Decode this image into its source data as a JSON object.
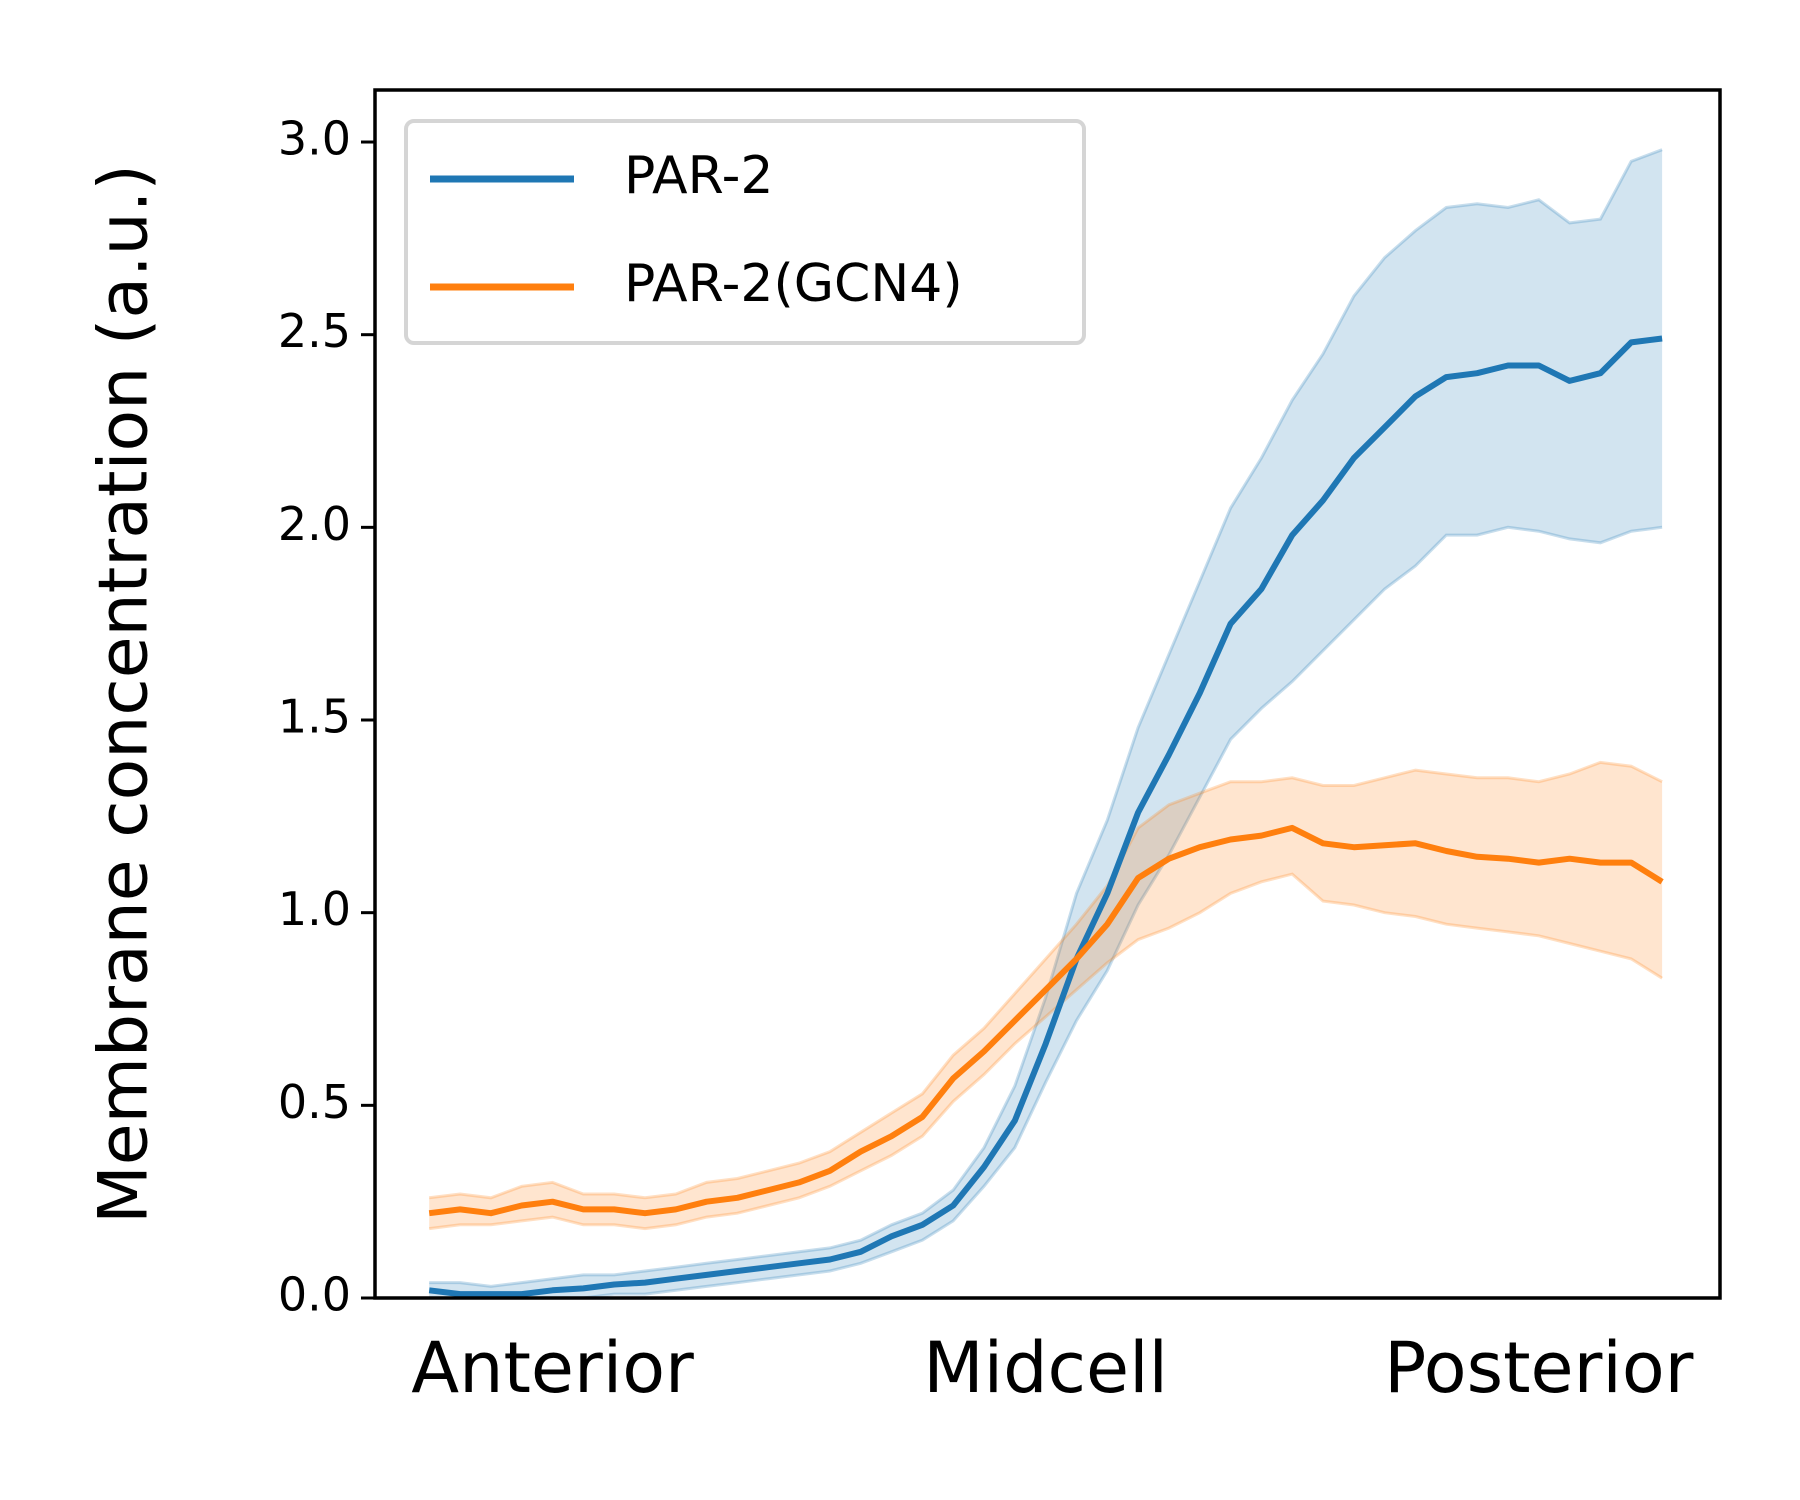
{
  "chart_data": {
    "type": "line",
    "ylabel": "Membrane concentration (a.u.)",
    "x": [
      0,
      0.025,
      0.05,
      0.075,
      0.1,
      0.125,
      0.15,
      0.175,
      0.2,
      0.225,
      0.25,
      0.275,
      0.3,
      0.325,
      0.35,
      0.375,
      0.4,
      0.425,
      0.45,
      0.475,
      0.5,
      0.525,
      0.55,
      0.575,
      0.6,
      0.625,
      0.65,
      0.675,
      0.7,
      0.725,
      0.75,
      0.775,
      0.8,
      0.825,
      0.85,
      0.875,
      0.9,
      0.925,
      0.95,
      0.975,
      1
    ],
    "xlim": [
      -0.044,
      1.047
    ],
    "xticks": [
      {
        "value": 0.1,
        "label": "Anterior"
      },
      {
        "value": 0.5,
        "label": "Midcell"
      },
      {
        "value": 0.9,
        "label": "Posterior"
      }
    ],
    "ylim": [
      0,
      3.135
    ],
    "yticks": [
      {
        "value": 0,
        "label": "0.0"
      },
      {
        "value": 0.5,
        "label": "0.5"
      },
      {
        "value": 1,
        "label": "1.0"
      },
      {
        "value": 1.5,
        "label": "1.5"
      },
      {
        "value": 2,
        "label": "2.0"
      },
      {
        "value": 2.5,
        "label": "2.5"
      },
      {
        "value": 3,
        "label": "3.0"
      }
    ],
    "legend": "upper left",
    "series": [
      {
        "name": "PAR-2",
        "color": "#1f77b4",
        "values": [
          0.02,
          0.01,
          0.01,
          0.01,
          0.02,
          0.025,
          0.035,
          0.04,
          0.05,
          0.06,
          0.07,
          0.08,
          0.09,
          0.1,
          0.12,
          0.16,
          0.19,
          0.24,
          0.34,
          0.46,
          0.66,
          0.88,
          1.05,
          1.26,
          1.41,
          1.57,
          1.75,
          1.84,
          1.98,
          2.07,
          2.18,
          2.26,
          2.34,
          2.39,
          2.4,
          2.42,
          2.42,
          2.38,
          2.4,
          2.48,
          2.49
        ],
        "lower": [
          0,
          0,
          0,
          0,
          0,
          0,
          0.01,
          0.01,
          0.02,
          0.03,
          0.04,
          0.05,
          0.06,
          0.07,
          0.09,
          0.12,
          0.15,
          0.2,
          0.29,
          0.39,
          0.56,
          0.72,
          0.85,
          1.02,
          1.15,
          1.3,
          1.45,
          1.53,
          1.6,
          1.68,
          1.76,
          1.84,
          1.9,
          1.98,
          1.98,
          2.0,
          1.99,
          1.97,
          1.96,
          1.99,
          2.0
        ],
        "upper": [
          0.04,
          0.04,
          0.03,
          0.04,
          0.05,
          0.06,
          0.06,
          0.07,
          0.08,
          0.09,
          0.1,
          0.11,
          0.12,
          0.13,
          0.15,
          0.19,
          0.22,
          0.28,
          0.39,
          0.55,
          0.78,
          1.05,
          1.24,
          1.48,
          1.67,
          1.86,
          2.05,
          2.18,
          2.33,
          2.45,
          2.6,
          2.7,
          2.77,
          2.83,
          2.84,
          2.83,
          2.85,
          2.79,
          2.8,
          2.95,
          2.98
        ]
      },
      {
        "name": "PAR-2(GCN4)",
        "color": "#ff7f0e",
        "values": [
          0.22,
          0.23,
          0.22,
          0.24,
          0.25,
          0.23,
          0.23,
          0.22,
          0.23,
          0.25,
          0.26,
          0.28,
          0.3,
          0.33,
          0.38,
          0.42,
          0.47,
          0.57,
          0.64,
          0.72,
          0.8,
          0.88,
          0.97,
          1.09,
          1.14,
          1.17,
          1.19,
          1.2,
          1.22,
          1.18,
          1.17,
          1.175,
          1.18,
          1.16,
          1.145,
          1.14,
          1.13,
          1.14,
          1.13,
          1.13,
          1.08
        ],
        "lower": [
          0.18,
          0.19,
          0.19,
          0.2,
          0.21,
          0.19,
          0.19,
          0.18,
          0.19,
          0.21,
          0.22,
          0.24,
          0.26,
          0.29,
          0.33,
          0.37,
          0.42,
          0.51,
          0.58,
          0.66,
          0.73,
          0.8,
          0.87,
          0.93,
          0.96,
          1.0,
          1.05,
          1.08,
          1.1,
          1.03,
          1.02,
          1.0,
          0.99,
          0.97,
          0.96,
          0.95,
          0.94,
          0.92,
          0.9,
          0.88,
          0.83
        ],
        "upper": [
          0.26,
          0.27,
          0.26,
          0.29,
          0.3,
          0.27,
          0.27,
          0.26,
          0.27,
          0.3,
          0.31,
          0.33,
          0.35,
          0.38,
          0.43,
          0.48,
          0.53,
          0.63,
          0.7,
          0.79,
          0.88,
          0.97,
          1.07,
          1.22,
          1.28,
          1.31,
          1.34,
          1.34,
          1.35,
          1.33,
          1.33,
          1.35,
          1.37,
          1.36,
          1.35,
          1.35,
          1.34,
          1.36,
          1.39,
          1.38,
          1.34
        ]
      }
    ]
  }
}
